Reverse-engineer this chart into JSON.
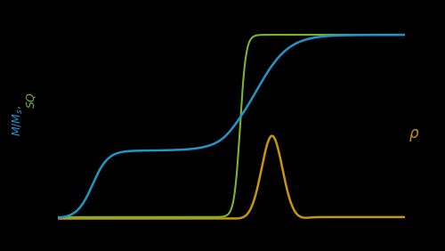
{
  "background_color": "#000000",
  "blue_color": "#2196c8",
  "green_color": "#7ab530",
  "gold_color": "#c8960a",
  "figsize": [
    5.0,
    2.82
  ],
  "dpi": 100,
  "ylabel_blue": "M/M_s,",
  "ylabel_green": "SQ",
  "ylabel_rho": "ρ"
}
